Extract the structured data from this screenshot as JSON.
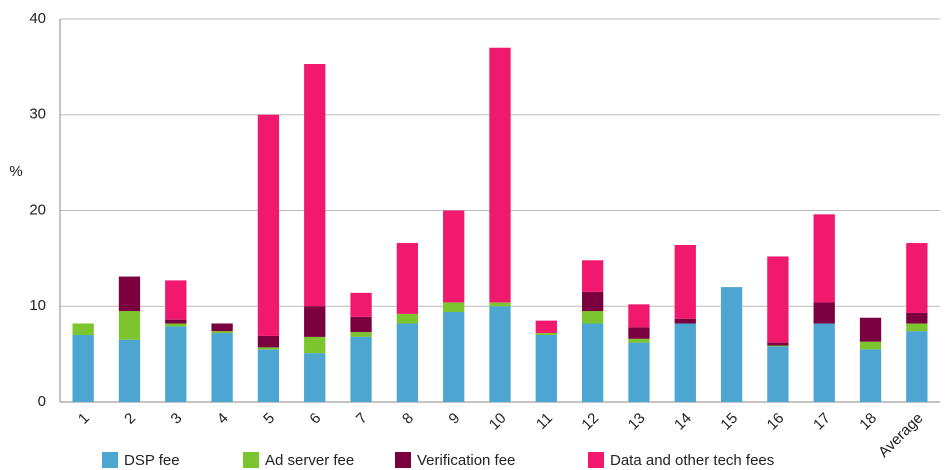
{
  "chart_data": {
    "type": "stacked_bar",
    "y_label": "%",
    "categories": [
      "1",
      "2",
      "3",
      "4",
      "5",
      "6",
      "7",
      "8",
      "9",
      "10",
      "11",
      "12",
      "13",
      "14",
      "15",
      "16",
      "17",
      "18",
      "Average"
    ],
    "series": [
      {
        "name": "DSP fee",
        "color": "#4da6d1",
        "values": [
          7.0,
          6.5,
          7.9,
          7.2,
          5.5,
          5.1,
          6.8,
          8.2,
          9.4,
          10.0,
          7.0,
          8.2,
          6.2,
          8.2,
          12.0,
          5.8,
          8.2,
          5.5,
          7.4
        ]
      },
      {
        "name": "Ad server fee",
        "color": "#7dc52e",
        "values": [
          1.2,
          3.0,
          0.3,
          0.2,
          0.2,
          1.7,
          0.5,
          1.0,
          1.0,
          0.4,
          0.2,
          1.3,
          0.4,
          0,
          0,
          0.1,
          0,
          0.8,
          0.8
        ]
      },
      {
        "name": "Verification fee",
        "color": "#7a0040",
        "values": [
          0,
          3.6,
          0.4,
          0.8,
          1.2,
          3.2,
          1.6,
          0,
          0,
          0,
          0,
          2.0,
          1.2,
          0.5,
          0,
          0.3,
          2.2,
          2.5,
          1.1
        ]
      },
      {
        "name": "Data and other tech fees",
        "color": "#f0196e",
        "values": [
          0,
          0,
          4.1,
          0,
          23.1,
          25.3,
          2.5,
          7.4,
          9.6,
          26.6,
          1.3,
          3.3,
          2.4,
          7.7,
          0,
          9.0,
          9.2,
          0,
          7.3
        ]
      }
    ],
    "ylim": [
      0,
      40
    ],
    "yticks": [
      0,
      10,
      20,
      30,
      40
    ],
    "grid": true
  }
}
